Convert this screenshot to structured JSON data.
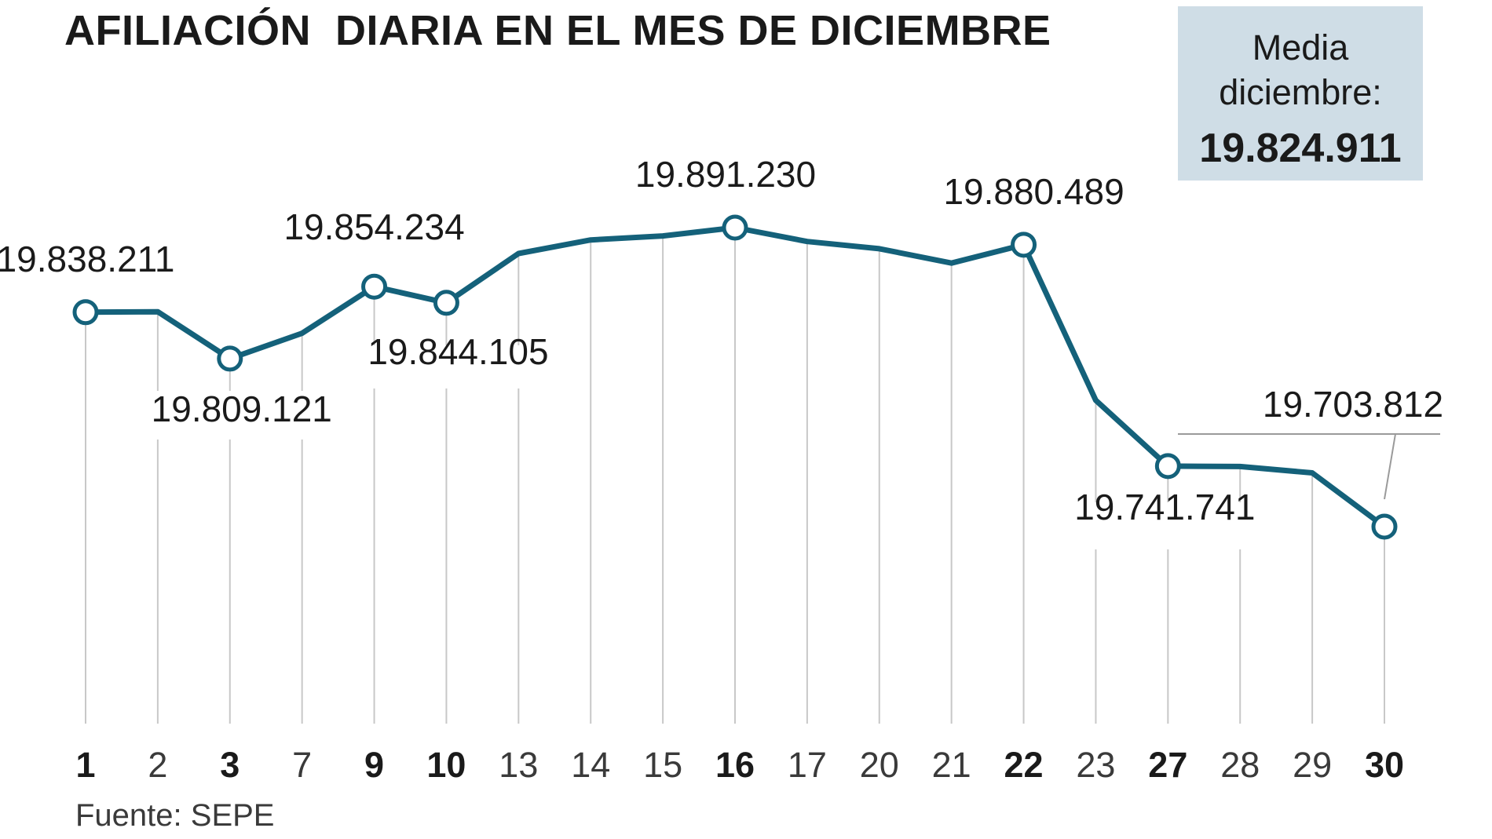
{
  "chart_data": {
    "type": "line",
    "title": "AFILIACIÓN  DIARIA EN EL MES DE DICIEMBRE",
    "categories": [
      "1",
      "2",
      "3",
      "7",
      "9",
      "10",
      "13",
      "14",
      "15",
      "16",
      "17",
      "20",
      "21",
      "22",
      "23",
      "27",
      "28",
      "29",
      "30"
    ],
    "bold_categories": [
      "1",
      "3",
      "9",
      "10",
      "16",
      "22",
      "27",
      "30"
    ],
    "series": [
      {
        "values": [
          19838211,
          19838500,
          19809121,
          19825000,
          19854234,
          19844105,
          19875000,
          19883500,
          19886000,
          19891230,
          19882500,
          19878000,
          19869000,
          19880489,
          19783000,
          19741741,
          19741500,
          19737500,
          19703812
        ],
        "color": "#14617a"
      }
    ],
    "labeled_points": [
      {
        "category": "1",
        "label": "19.838.211"
      },
      {
        "category": "3",
        "label": "19.809.121"
      },
      {
        "category": "9",
        "label": "19.854.234"
      },
      {
        "category": "10",
        "label": "19.844.105"
      },
      {
        "category": "16",
        "label": "19.891.230"
      },
      {
        "category": "22",
        "label": "19.880.489"
      },
      {
        "category": "27",
        "label": "19.741.741"
      },
      {
        "category": "30",
        "label": "19.703.812"
      }
    ],
    "ylim": [
      19650000,
      19900000
    ],
    "grid": "vertical",
    "xlabel": "",
    "ylabel": ""
  },
  "summary_box": {
    "label": "Media diciembre:",
    "value": "19.824.911",
    "background": "#cfdde6"
  },
  "source": "Fuente: SEPE",
  "colors": {
    "line": "#14617a",
    "grid": "#c8c8c8",
    "marker_fill": "#ffffff"
  }
}
